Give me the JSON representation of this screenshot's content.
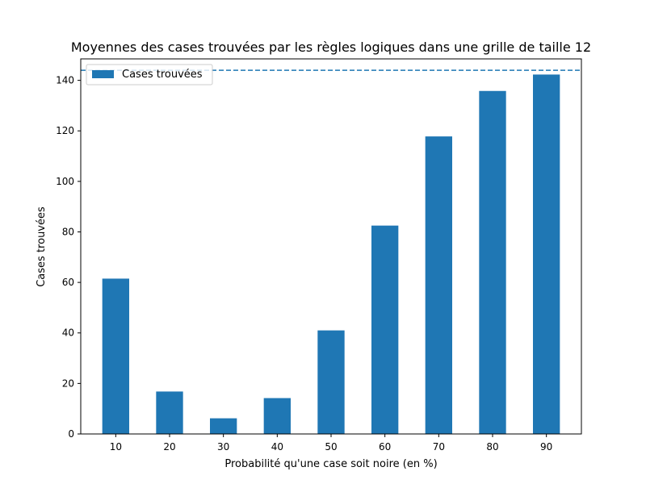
{
  "chart_data": {
    "type": "bar",
    "title": "Moyennes des cases trouvées par les règles logiques dans une grille de taille 12",
    "xlabel": "Probabilité qu'une case soit noire (en %)",
    "ylabel": "Cases trouvées",
    "categories": [
      "10",
      "20",
      "30",
      "40",
      "50",
      "60",
      "70",
      "80",
      "90"
    ],
    "series": [
      {
        "name": "Cases trouvées",
        "color": "#1f77b4",
        "values": [
          61.5,
          16.8,
          6.2,
          14.2,
          41.0,
          82.5,
          117.8,
          135.8,
          142.3
        ]
      }
    ],
    "reference_line": {
      "y": 144,
      "style": "dashed",
      "color": "#1f77b4"
    },
    "ylim": [
      0,
      148.5
    ],
    "yticks": [
      0,
      20,
      40,
      60,
      80,
      100,
      120,
      140
    ],
    "grid": false,
    "legend_position": "top-left"
  }
}
